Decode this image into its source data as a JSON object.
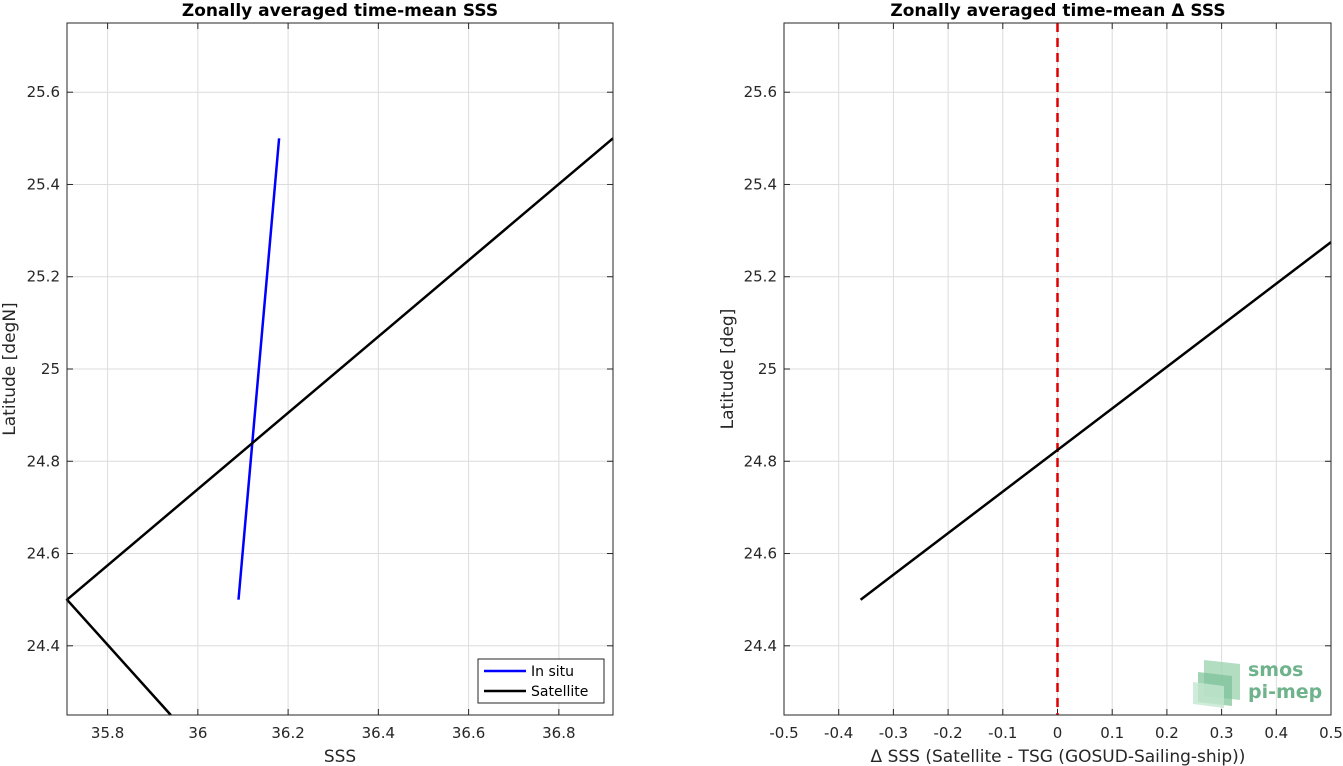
{
  "chart_data": [
    {
      "type": "line",
      "title": "Zonally averaged time-mean SSS",
      "xlabel": "SSS",
      "ylabel": "Latitude [degN]",
      "xlim": [
        35.71,
        36.92
      ],
      "ylim": [
        24.25,
        25.75
      ],
      "xticks": [
        35.8,
        36,
        36.2,
        36.4,
        36.6,
        36.8
      ],
      "xtick_labels": [
        "35.8",
        "36",
        "36.2",
        "36.4",
        "36.6",
        "36.8"
      ],
      "yticks": [
        24.4,
        24.6,
        24.8,
        25,
        25.2,
        25.4,
        25.6
      ],
      "ytick_labels": [
        "24.4",
        "24.6",
        "24.8",
        "25",
        "25.2",
        "25.4",
        "25.6"
      ],
      "grid": true,
      "legend_position": "bottom-right",
      "series": [
        {
          "name": "In situ",
          "color": "#0000ff",
          "x": [
            36.09,
            36.18
          ],
          "y": [
            24.5,
            25.5
          ]
        },
        {
          "name": "Satellite",
          "color": "#000000",
          "x": [
            35.94,
            35.71,
            36.92
          ],
          "y": [
            24.25,
            24.5,
            25.5
          ]
        }
      ]
    },
    {
      "type": "line",
      "title": "Zonally averaged time-mean Δ SSS",
      "xlabel": "Δ SSS (Satellite - TSG (GOSUD-Sailing-ship))",
      "ylabel": "Latitude [deg]",
      "xlim": [
        -0.5,
        0.5
      ],
      "ylim": [
        24.25,
        25.75
      ],
      "xticks": [
        -0.5,
        -0.4,
        -0.3,
        -0.2,
        -0.1,
        0,
        0.1,
        0.2,
        0.3,
        0.4,
        0.5
      ],
      "xtick_labels": [
        "-0.5",
        "-0.4",
        "-0.3",
        "-0.2",
        "-0.1",
        "0",
        "0.1",
        "0.2",
        "0.3",
        "0.4",
        "0.5"
      ],
      "yticks": [
        24.4,
        24.6,
        24.8,
        25,
        25.2,
        25.4,
        25.6
      ],
      "ytick_labels": [
        "24.4",
        "24.6",
        "24.8",
        "25",
        "25.2",
        "25.4",
        "25.6"
      ],
      "grid": true,
      "reference_line": {
        "x": 0,
        "color": "#e00000",
        "style": "dashed"
      },
      "series": [
        {
          "name": "",
          "color": "#000000",
          "x": [
            -0.36,
            0.5
          ],
          "y": [
            24.5,
            25.275
          ]
        }
      ]
    }
  ],
  "logo": {
    "line1": "smos",
    "line2": "pi-mep"
  }
}
